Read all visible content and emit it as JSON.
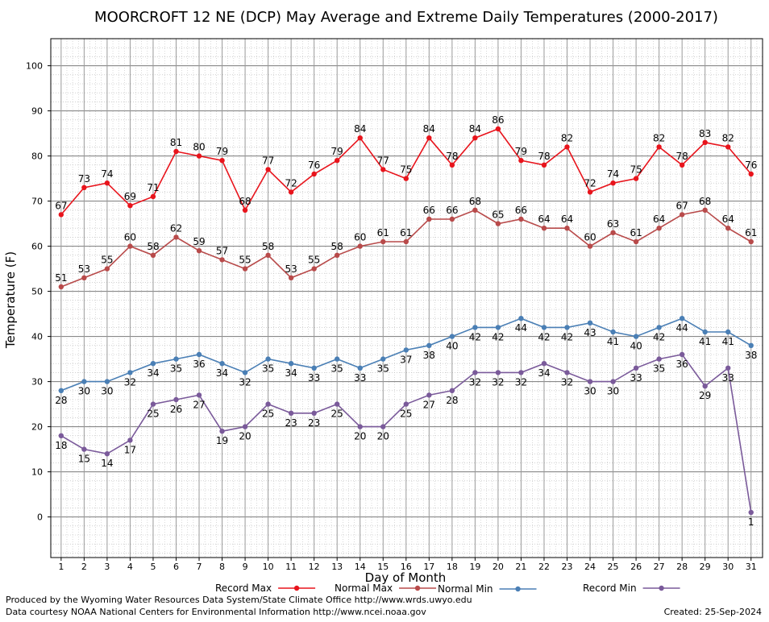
{
  "chart_data": {
    "type": "line",
    "title": "MOORCROFT 12 NE (DCP) May Average and Extreme Daily Temperatures (2000-2017)",
    "xlabel": "Day of Month",
    "ylabel": "Temperature (F)",
    "xlim": [
      0.55,
      31.5
    ],
    "ylim": [
      -9,
      106
    ],
    "yticks": [
      0,
      10,
      20,
      30,
      40,
      50,
      60,
      70,
      80,
      90,
      100
    ],
    "x": [
      1,
      2,
      3,
      4,
      5,
      6,
      7,
      8,
      9,
      10,
      11,
      12,
      13,
      14,
      15,
      16,
      17,
      18,
      19,
      20,
      21,
      22,
      23,
      24,
      25,
      26,
      27,
      28,
      29,
      30,
      31
    ],
    "grid": true,
    "legend_position": "bottom",
    "series": [
      {
        "name": "Record Max",
        "color": "#e8141c",
        "label_position": "above",
        "values": [
          67,
          73,
          74,
          69,
          71,
          81,
          80,
          79,
          68,
          77,
          72,
          76,
          79,
          84,
          77,
          75,
          84,
          78,
          84,
          86,
          79,
          78,
          82,
          72,
          74,
          75,
          82,
          78,
          83,
          82,
          76
        ]
      },
      {
        "name": "Normal Max",
        "color": "#b84a4a",
        "label_position": "above",
        "values": [
          51,
          53,
          55,
          60,
          58,
          62,
          59,
          57,
          55,
          58,
          53,
          55,
          58,
          60,
          61,
          61,
          66,
          66,
          68,
          65,
          66,
          64,
          64,
          60,
          63,
          61,
          64,
          67,
          68,
          64,
          61
        ]
      },
      {
        "name": "Normal Min",
        "color": "#4a7fb5",
        "label_position": "below",
        "values": [
          28,
          30,
          30,
          32,
          34,
          35,
          36,
          34,
          32,
          35,
          34,
          33,
          35,
          33,
          35,
          37,
          38,
          40,
          42,
          42,
          44,
          42,
          42,
          43,
          41,
          40,
          42,
          44,
          41,
          41,
          38
        ]
      },
      {
        "name": "Record Min",
        "color": "#7a5a9a",
        "label_position": "below",
        "values": [
          18,
          15,
          14,
          17,
          25,
          26,
          27,
          19,
          20,
          25,
          23,
          23,
          25,
          20,
          20,
          25,
          27,
          28,
          32,
          32,
          32,
          34,
          32,
          30,
          30,
          33,
          35,
          36,
          29,
          33,
          1
        ]
      }
    ]
  },
  "footer": {
    "produced_by": "Produced by the Wyoming Water Resources Data System/State Climate Office http://www.wrds.uwyo.edu",
    "data_courtesy": "Data courtesy NOAA National Centers for Environmental Information http://www.ncei.noaa.gov",
    "created": "Created:  25-Sep-2024"
  }
}
